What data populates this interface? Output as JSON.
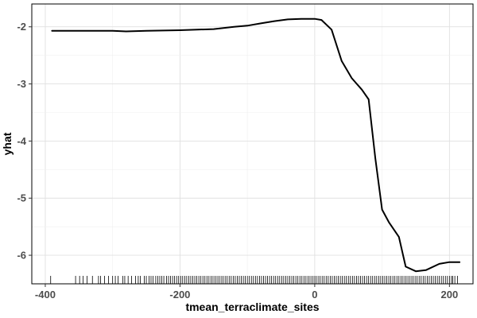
{
  "chart_data": {
    "type": "line",
    "title": "",
    "xlabel": "tmean_terraclimate_sites",
    "ylabel": "yhat",
    "xlim": [
      -420,
      235
    ],
    "ylim": [
      -6.5,
      -1.6
    ],
    "x_ticks": [
      -400,
      -200,
      0,
      200
    ],
    "x_tick_labels": [
      "-400",
      "-200",
      "0",
      "200"
    ],
    "y_ticks": [
      -2,
      -3,
      -4,
      -5,
      -6
    ],
    "y_tick_labels": [
      "-2",
      "-3",
      "-4",
      "-5",
      "-6"
    ],
    "grid": true,
    "series": [
      {
        "color": "#000000",
        "points": [
          [
            -390,
            -2.07
          ],
          [
            -350,
            -2.07
          ],
          [
            -300,
            -2.07
          ],
          [
            -280,
            -2.08
          ],
          [
            -250,
            -2.07
          ],
          [
            -200,
            -2.06
          ],
          [
            -150,
            -2.04
          ],
          [
            -120,
            -2.0
          ],
          [
            -100,
            -1.98
          ],
          [
            -80,
            -1.94
          ],
          [
            -60,
            -1.9
          ],
          [
            -40,
            -1.87
          ],
          [
            -20,
            -1.86
          ],
          [
            0,
            -1.86
          ],
          [
            10,
            -1.88
          ],
          [
            25,
            -2.05
          ],
          [
            40,
            -2.6
          ],
          [
            55,
            -2.9
          ],
          [
            70,
            -3.1
          ],
          [
            80,
            -3.27
          ],
          [
            90,
            -4.3
          ],
          [
            100,
            -5.2
          ],
          [
            110,
            -5.42
          ],
          [
            125,
            -5.68
          ],
          [
            135,
            -6.2
          ],
          [
            150,
            -6.28
          ],
          [
            165,
            -6.26
          ],
          [
            185,
            -6.15
          ],
          [
            200,
            -6.12
          ],
          [
            215,
            -6.12
          ]
        ]
      }
    ],
    "rug": {
      "color": "#000000",
      "points": [
        -392,
        -355,
        -349,
        -344,
        -338,
        -330,
        -321,
        -318,
        -312,
        -306,
        -300,
        -296,
        -292,
        -285,
        -282,
        -277,
        -272,
        -266,
        -262,
        -259,
        -253,
        -250,
        -246,
        -243,
        -240,
        -236,
        -233,
        -230,
        -227,
        -224,
        -220,
        -217,
        -214,
        -211,
        -208,
        -205,
        -202,
        -199,
        -196,
        -193,
        -190,
        -187,
        -184,
        -181,
        -178,
        -175,
        -172,
        -169,
        -166,
        -163,
        -160,
        -157,
        -154,
        -151,
        -148,
        -145,
        -142,
        -139,
        -136,
        -133,
        -130,
        -127,
        -124,
        -121,
        -118,
        -115,
        -112,
        -109,
        -106,
        -103,
        -100,
        -97,
        -94,
        -91,
        -88,
        -85,
        -82,
        -79,
        -76,
        -73,
        -70,
        -67,
        -64,
        -61,
        -58,
        -55,
        -52,
        -49,
        -46,
        -43,
        -40,
        -37,
        -34,
        -31,
        -28,
        -25,
        -22,
        -19,
        -16,
        -13,
        -10,
        -7,
        -4,
        -1,
        2,
        5,
        8,
        11,
        14,
        17,
        20,
        23,
        26,
        29,
        32,
        35,
        38,
        41,
        44,
        47,
        50,
        53,
        56,
        59,
        62,
        65,
        68,
        71,
        74,
        77,
        80,
        83,
        86,
        89,
        92,
        95,
        98,
        101,
        104,
        107,
        110,
        113,
        116,
        119,
        122,
        125,
        128,
        131,
        134,
        137,
        140,
        143,
        146,
        149,
        152,
        155,
        158,
        161,
        164,
        167,
        170,
        173,
        176,
        179,
        182,
        185,
        188,
        191,
        194,
        197,
        200,
        203,
        205,
        208,
        212
      ]
    }
  }
}
